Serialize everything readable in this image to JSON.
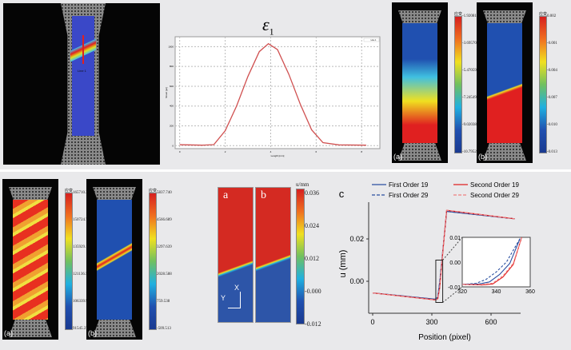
{
  "top_left": {
    "probe_label": "Line 1"
  },
  "strain_chart": {
    "title": "ε",
    "title_sub": "1",
    "legend": "Line 1",
    "ylabel": "Strain [με]",
    "xlabel": "Length [mm]",
    "chart_data": {
      "type": "line",
      "yticks": [
        0,
        200,
        400,
        600,
        800,
        1000
      ],
      "xticks": [
        0,
        2,
        4,
        6,
        8
      ],
      "xlim": [
        -0.2,
        8.8
      ],
      "ylim": [
        -30,
        1100
      ],
      "grid": true,
      "legend": "top-right",
      "x": [
        0,
        1,
        1.5,
        2,
        2.5,
        3,
        3.5,
        3.9,
        4.3,
        4.8,
        5.3,
        5.8,
        6.3,
        7,
        8.2
      ],
      "y": [
        10,
        5,
        10,
        150,
        400,
        700,
        950,
        1030,
        970,
        720,
        420,
        160,
        30,
        8,
        5
      ]
    }
  },
  "top_right": {
    "a": {
      "label": "(a)",
      "cb_title": "应变",
      "ticks": [
        "-1.92081",
        "-3.69570",
        "-5.47059",
        "-7.24549",
        "-9.02038",
        "-10.79527"
      ]
    },
    "b": {
      "label": "(b)",
      "cb_title": "应变",
      "ticks": [
        "0.002",
        "-0.001",
        "-0.004",
        "-0.007",
        "-0.010",
        "-0.013"
      ]
    }
  },
  "bottom_left": {
    "a": {
      "label": "(a)",
      "cb_title": "应变",
      "ticks": [
        "165710.37320",
        "150724.77620",
        "135929.18217",
        "121136.57173",
        "106339.97619",
        "91545.37320"
      ]
    },
    "b": {
      "label": "(b)",
      "cb_title": "应变",
      "ticks": [
        "5837.740",
        "4566.689",
        "3297.639",
        "2028.588",
        "759.538",
        "-509.513"
      ]
    }
  },
  "displacement_maps": {
    "a_label": "a",
    "b_label": "b",
    "axis_x": "X",
    "axis_y": "Y",
    "cb_unit": "u/mm",
    "ticks": [
      "0.036",
      "0.024",
      "0.012",
      "-0.000",
      "-0.012"
    ],
    "colors": {
      "high": "#d42a22",
      "low": "#2d55a8"
    }
  },
  "profile_chart": {
    "panel_label": "c",
    "xlabel": "Position (pixel)",
    "ylabel": "u (mm)",
    "chart_data": {
      "type": "line",
      "xticks": [
        0,
        300,
        600
      ],
      "yticks": [
        0.0,
        0.02
      ],
      "ytick_labels": [
        "0.00",
        "0.02"
      ],
      "xlim": [
        -20,
        750
      ],
      "ylim": [
        -0.015,
        0.0375
      ],
      "series": [
        {
          "name": "First Order 19",
          "style": "solid",
          "color": "#2a4fa0",
          "x": [
            0,
            320,
            330,
            340,
            350,
            375,
            720
          ],
          "y": [
            -0.0055,
            -0.0085,
            -0.0075,
            -0.001,
            0.009,
            0.033,
            0.0295
          ]
        },
        {
          "name": "First Order 29",
          "style": "dashed",
          "color": "#2a4fa0",
          "x": [
            0,
            320,
            330,
            340,
            350,
            375,
            720
          ],
          "y": [
            -0.0055,
            -0.0085,
            -0.0072,
            0.0,
            0.0095,
            0.033,
            0.0295
          ]
        },
        {
          "name": "Second Order 19",
          "style": "solid",
          "color": "#e02020",
          "x": [
            0,
            320,
            330,
            340,
            350,
            375,
            720
          ],
          "y": [
            -0.0055,
            -0.0088,
            -0.0082,
            -0.003,
            0.008,
            0.0335,
            0.0295
          ]
        },
        {
          "name": "Second Order 29",
          "style": "dashed",
          "color": "#f08080",
          "x": [
            0,
            320,
            330,
            340,
            350,
            375,
            720
          ],
          "y": [
            -0.0055,
            -0.0088,
            -0.008,
            -0.0025,
            0.0085,
            0.0335,
            0.0295
          ]
        }
      ],
      "inset": {
        "xlim": [
          320,
          360
        ],
        "ylim": [
          -0.01,
          0.01
        ],
        "xticks": [
          320,
          340,
          360
        ],
        "yticks": [
          "0.01",
          "0.00",
          "-0.01"
        ],
        "series": [
          {
            "name": "First Order 19",
            "x": [
              320,
              330,
              336,
              342,
              348,
              354
            ],
            "y": [
              -0.009,
              -0.0088,
              -0.008,
              -0.005,
              -0.0005,
              0.0095
            ]
          },
          {
            "name": "First Order 29",
            "x": [
              320,
              328,
              334,
              340,
              346,
              354
            ],
            "y": [
              -0.009,
              -0.0086,
              -0.007,
              -0.004,
              0.0,
              0.0095
            ]
          },
          {
            "name": "Second Order 19",
            "x": [
              320,
              332,
              338,
              344,
              350,
              355
            ],
            "y": [
              -0.009,
              -0.0092,
              -0.0088,
              -0.006,
              -0.001,
              0.01
            ]
          },
          {
            "name": "Second Order 29",
            "x": [
              320,
              332,
              338,
              344,
              350,
              355
            ],
            "y": [
              -0.009,
              -0.009,
              -0.0085,
              -0.0055,
              -0.0005,
              0.01
            ]
          }
        ]
      }
    }
  }
}
